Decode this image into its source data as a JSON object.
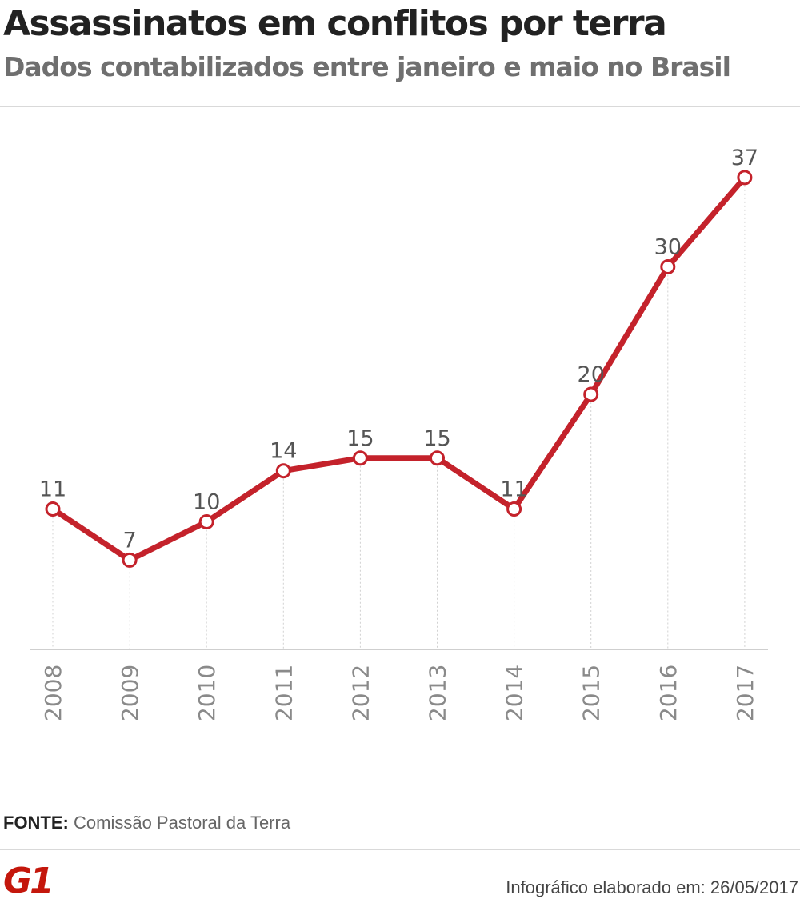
{
  "header": {
    "title": "Assassinatos em conflitos por terra",
    "subtitle": "Dados contabilizados entre janeiro e maio no Brasil"
  },
  "chart_data": {
    "type": "line",
    "title": "Assassinatos em conflitos por terra",
    "subtitle": "Dados contabilizados entre janeiro e maio no Brasil",
    "categories": [
      "2008",
      "2009",
      "2010",
      "2011",
      "2012",
      "2013",
      "2014",
      "2015",
      "2016",
      "2017"
    ],
    "series": [
      {
        "name": "Assassinatos",
        "values": [
          11,
          7,
          10,
          14,
          15,
          15,
          11,
          20,
          30,
          37
        ]
      }
    ],
    "xlabel": "",
    "ylabel": "",
    "ylim": [
      0,
      37
    ],
    "grid": false,
    "line_color": "#c4222b",
    "data_labels": true
  },
  "footer": {
    "source_label": "FONTE:",
    "source_text": "Comissão Pastoral da Terra",
    "logo_text": "G1",
    "credit": "Infográfico elaborado em: 26/05/2017"
  },
  "colors": {
    "accent": "#c4222b",
    "brand": "#c4170c",
    "title": "#222222",
    "subtitle": "#6f6f6f"
  }
}
